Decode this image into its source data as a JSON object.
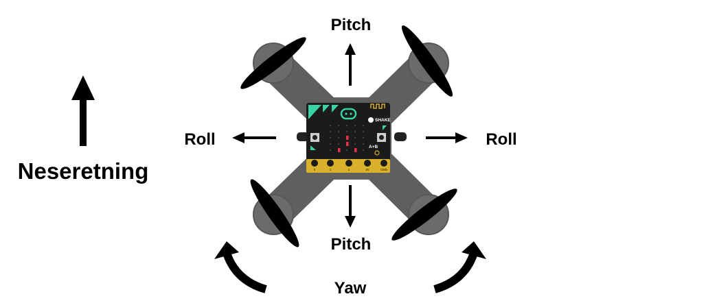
{
  "labels": {
    "direction": "Neseretning",
    "pitch_top": "Pitch",
    "pitch_bottom": "Pitch",
    "roll_left": "Roll",
    "roll_right": "Roll",
    "yaw": "Yaw"
  },
  "board": {
    "shake_label": "SHAKE",
    "ab_label": "A+B",
    "pins": [
      "0",
      "1",
      "2",
      "3V",
      "GND"
    ]
  },
  "colors": {
    "frame": "#5f5f5f",
    "motor": "#6b6b6b",
    "propeller": "#000000",
    "board": "#1b1b1b",
    "accent": "#39d3a6",
    "led": "#e8314f",
    "pin_gold": "#d9b12b",
    "arrow": "#000000"
  }
}
